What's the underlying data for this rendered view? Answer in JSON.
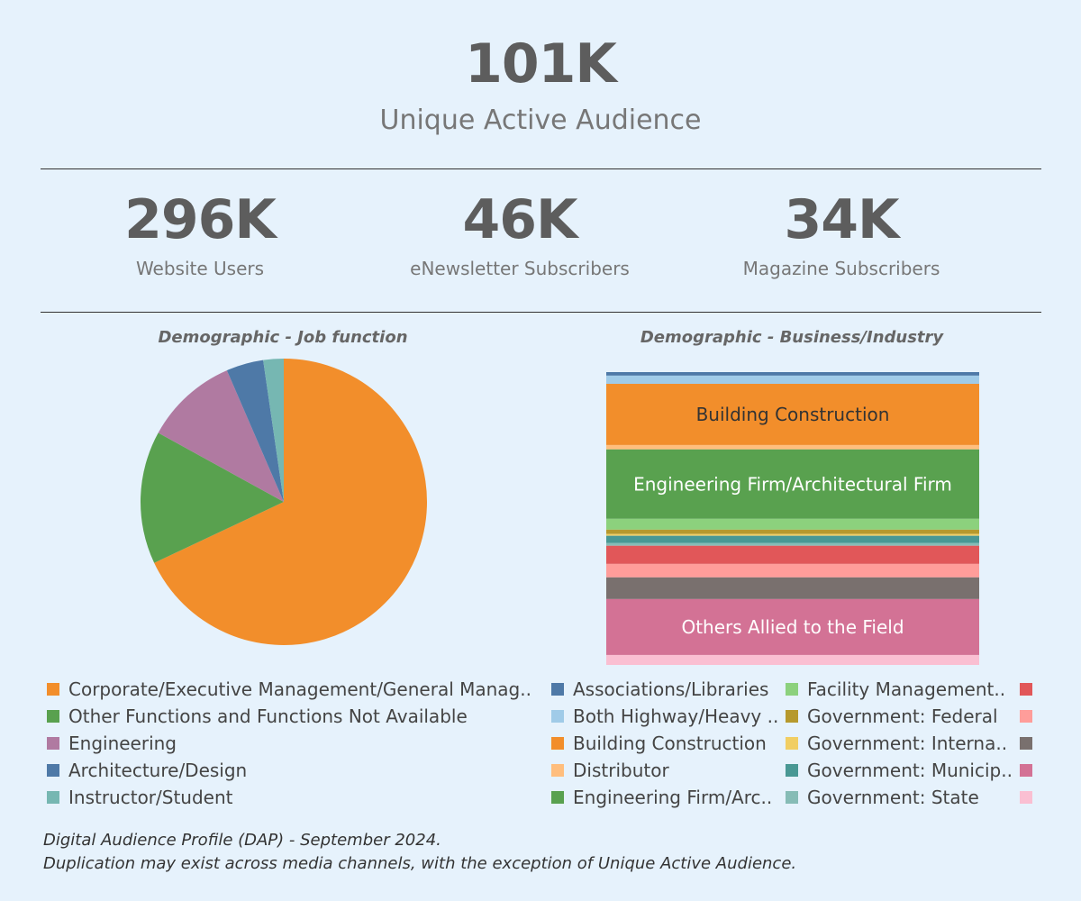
{
  "header": {
    "unique_value": "101K",
    "unique_label": "Unique Active Audience"
  },
  "kpis": [
    {
      "value": "296K",
      "label": "Website Users"
    },
    {
      "value": "46K",
      "label": "eNewsletter Subscribers"
    },
    {
      "value": "34K",
      "label": "Magazine Subscribers"
    }
  ],
  "chart_data": [
    {
      "type": "pie",
      "title": "Demographic - Job function",
      "legend_position": "bottom",
      "series": [
        {
          "name": "Corporate/Executive Management/General Manag..",
          "value": 68.0,
          "color": "#f28e2b"
        },
        {
          "name": "Other Functions and Functions Not Available",
          "value": 15.0,
          "color": "#59a14f"
        },
        {
          "name": "Engineering",
          "value": 10.5,
          "color": "#b07aa1"
        },
        {
          "name": "Architecture/Design",
          "value": 4.2,
          "color": "#4e79a7"
        },
        {
          "name": "Instructor/Student",
          "value": 2.3,
          "color": "#76b7b2"
        }
      ]
    },
    {
      "type": "bar",
      "stacked": true,
      "title": "Demographic - Business/Industry",
      "legend_position": "bottom",
      "series": [
        {
          "name": "Associations/Libraries",
          "value": 1.2,
          "color": "#4e79a7",
          "label": ""
        },
        {
          "name": "Both Highway/Heavy ..",
          "value": 2.8,
          "color": "#a0cbe8",
          "label": ""
        },
        {
          "name": "Building Construction",
          "value": 20.9,
          "color": "#f28e2b",
          "label": "Building Construction"
        },
        {
          "name": "Distributor",
          "value": 1.5,
          "color": "#ffbe7d",
          "label": ""
        },
        {
          "name": "Engineering Firm/Arc..",
          "value": 23.7,
          "color": "#59a14f",
          "label": "Engineering Firm/Architectural Firm"
        },
        {
          "name": "Facility Management..",
          "value": 3.7,
          "color": "#8cd17d",
          "label": ""
        },
        {
          "name": "Government: Federal",
          "value": 1.5,
          "color": "#b6992d",
          "label": ""
        },
        {
          "name": "Government: Interna..",
          "value": 0.6,
          "color": "#f1ce63",
          "label": ""
        },
        {
          "name": "Government: Municip..",
          "value": 2.5,
          "color": "#499894",
          "label": ""
        },
        {
          "name": "Government: State",
          "value": 0.9,
          "color": "#86bcb6",
          "label": ""
        },
        {
          "name": "",
          "value": 6.2,
          "color": "#e15759",
          "label": ""
        },
        {
          "name": "",
          "value": 4.6,
          "color": "#ff9d9a",
          "label": ""
        },
        {
          "name": "",
          "value": 7.4,
          "color": "#79706e",
          "label": ""
        },
        {
          "name": "",
          "value": 19.1,
          "color": "#d37295",
          "label": "Others Allied to the Field"
        },
        {
          "name": "",
          "value": 3.4,
          "color": "#fabfd2",
          "label": ""
        }
      ]
    }
  ],
  "footnotes": {
    "line1": "Digital Audience Profile (DAP) - September 2024.",
    "line2": "Duplication may exist across media channels, with the exception of Unique Active Audience."
  }
}
